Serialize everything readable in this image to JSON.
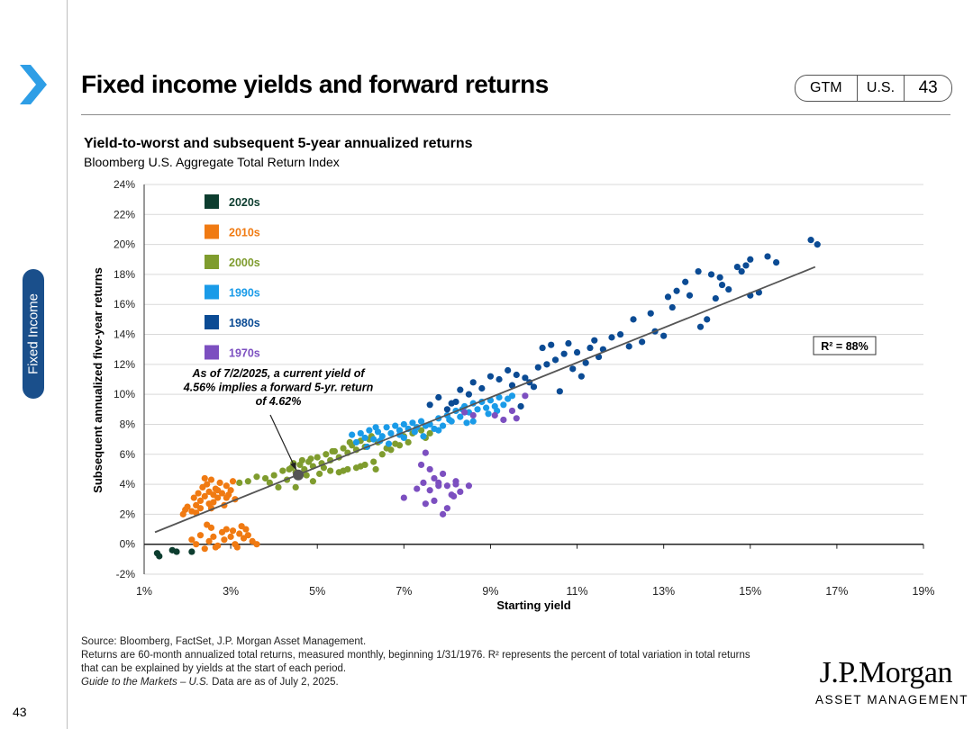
{
  "header": {
    "title": "Fixed income yields and forward returns",
    "badge": {
      "label1": "GTM",
      "label2": "U.S.",
      "page": "43"
    },
    "side_tab": "Fixed Income"
  },
  "colors": {
    "2020s": "#0d3d2f",
    "2010s": "#f07a12",
    "2000s": "#7f9c2e",
    "1990s": "#1a9be8",
    "1980s": "#0b4b94",
    "1970s": "#7c4fc0",
    "accent": "#2e9ee6",
    "tab": "#1a4f8b"
  },
  "chart_data": {
    "type": "scatter",
    "title": "Yield-to-worst and subsequent 5-year annualized returns",
    "subtitle": "Bloomberg U.S. Aggregate Total Return Index",
    "xlabel": "Starting yield",
    "ylabel": "Subsequent annualized five-year returns",
    "xlim": [
      1,
      19
    ],
    "ylim": [
      -2,
      24
    ],
    "xticks": [
      "1%",
      "3%",
      "5%",
      "7%",
      "9%",
      "11%",
      "13%",
      "15%",
      "17%",
      "19%"
    ],
    "yticks": [
      "-2%",
      "0%",
      "2%",
      "4%",
      "6%",
      "8%",
      "10%",
      "12%",
      "14%",
      "16%",
      "18%",
      "20%",
      "22%",
      "24%"
    ],
    "legend": [
      "2020s",
      "2010s",
      "2000s",
      "1990s",
      "1980s",
      "1970s"
    ],
    "legend_position": "top-left",
    "regression": {
      "x": [
        1.25,
        16.5
      ],
      "y": [
        0.8,
        18.5
      ]
    },
    "r2_label": "R² = 88%",
    "annotation": "As of 7/2/2025, a current yield of 4.56% implies a forward 5-yr. return of 4.62%",
    "current_point": {
      "x": 4.56,
      "y": 4.62
    },
    "series": [
      {
        "name": "2020s",
        "points": [
          [
            1.3,
            -0.6
          ],
          [
            1.35,
            -0.8
          ],
          [
            1.65,
            -0.4
          ],
          [
            1.75,
            -0.5
          ],
          [
            2.1,
            -0.5
          ]
        ]
      },
      {
        "name": "2010s",
        "points": [
          [
            1.9,
            2.0
          ],
          [
            1.95,
            2.3
          ],
          [
            2.0,
            2.5
          ],
          [
            2.1,
            2.2
          ],
          [
            2.15,
            3.1
          ],
          [
            2.2,
            2.6
          ],
          [
            2.25,
            3.4
          ],
          [
            2.3,
            2.9
          ],
          [
            2.35,
            3.8
          ],
          [
            2.4,
            3.2
          ],
          [
            2.45,
            4.0
          ],
          [
            2.5,
            3.5
          ],
          [
            2.55,
            4.3
          ],
          [
            2.6,
            2.8
          ],
          [
            2.65,
            3.7
          ],
          [
            2.7,
            3.1
          ],
          [
            2.75,
            4.1
          ],
          [
            2.8,
            3.4
          ],
          [
            2.85,
            2.6
          ],
          [
            2.9,
            3.9
          ],
          [
            2.95,
            3.3
          ],
          [
            3.0,
            3.6
          ],
          [
            3.05,
            4.2
          ],
          [
            3.1,
            3.0
          ],
          [
            2.2,
            2.1
          ],
          [
            2.3,
            2.4
          ],
          [
            2.5,
            2.7
          ],
          [
            2.6,
            3.3
          ],
          [
            2.7,
            3.6
          ],
          [
            2.4,
            4.4
          ],
          [
            2.55,
            2.4
          ],
          [
            2.9,
            3.1
          ],
          [
            2.1,
            0.3
          ],
          [
            2.2,
            0.0
          ],
          [
            2.3,
            0.6
          ],
          [
            2.4,
            -0.3
          ],
          [
            2.5,
            0.2
          ],
          [
            2.55,
            1.1
          ],
          [
            2.6,
            0.5
          ],
          [
            2.7,
            -0.1
          ],
          [
            2.8,
            0.8
          ],
          [
            2.85,
            0.3
          ],
          [
            2.9,
            1.0
          ],
          [
            3.0,
            0.5
          ],
          [
            3.05,
            0.9
          ],
          [
            3.1,
            0.0
          ],
          [
            3.2,
            0.7
          ],
          [
            3.25,
            1.2
          ],
          [
            3.3,
            0.4
          ],
          [
            3.35,
            1.0
          ],
          [
            3.4,
            0.6
          ],
          [
            3.5,
            0.2
          ],
          [
            3.6,
            0.0
          ],
          [
            2.45,
            1.3
          ],
          [
            2.65,
            -0.2
          ],
          [
            3.15,
            -0.2
          ]
        ]
      },
      {
        "name": "2000s",
        "points": [
          [
            3.2,
            4.1
          ],
          [
            3.4,
            4.2
          ],
          [
            3.6,
            4.5
          ],
          [
            3.8,
            4.4
          ],
          [
            4.0,
            4.6
          ],
          [
            4.2,
            4.9
          ],
          [
            4.3,
            4.3
          ],
          [
            4.4,
            5.1
          ],
          [
            4.5,
            4.8
          ],
          [
            4.6,
            5.3
          ],
          [
            4.7,
            5.0
          ],
          [
            4.8,
            5.5
          ],
          [
            4.9,
            5.2
          ],
          [
            5.0,
            5.8
          ],
          [
            5.1,
            5.4
          ],
          [
            5.2,
            6.0
          ],
          [
            5.3,
            5.6
          ],
          [
            5.4,
            6.2
          ],
          [
            5.5,
            5.8
          ],
          [
            5.6,
            6.4
          ],
          [
            5.7,
            6.1
          ],
          [
            5.8,
            6.6
          ],
          [
            5.9,
            6.3
          ],
          [
            6.0,
            6.9
          ],
          [
            6.1,
            6.5
          ],
          [
            6.2,
            7.0
          ],
          [
            4.45,
            5.4
          ],
          [
            4.85,
            5.7
          ],
          [
            5.15,
            5.1
          ],
          [
            4.75,
            4.6
          ],
          [
            4.1,
            3.8
          ],
          [
            3.9,
            4.1
          ],
          [
            4.9,
            4.2
          ],
          [
            5.05,
            4.7
          ],
          [
            5.3,
            4.9
          ],
          [
            5.5,
            4.8
          ],
          [
            5.7,
            5.0
          ],
          [
            5.9,
            5.1
          ],
          [
            6.1,
            5.3
          ],
          [
            6.3,
            5.5
          ],
          [
            6.5,
            6.0
          ],
          [
            6.7,
            6.3
          ],
          [
            6.9,
            6.6
          ],
          [
            7.0,
            7.2
          ],
          [
            7.2,
            7.4
          ],
          [
            7.4,
            7.6
          ],
          [
            7.5,
            7.1
          ],
          [
            7.1,
            6.8
          ],
          [
            6.8,
            6.7
          ],
          [
            6.6,
            6.4
          ],
          [
            6.35,
            5.0
          ],
          [
            6.0,
            5.2
          ],
          [
            5.6,
            4.9
          ],
          [
            4.5,
            3.8
          ],
          [
            7.3,
            7.8
          ],
          [
            6.4,
            6.8
          ],
          [
            5.35,
            6.2
          ],
          [
            4.65,
            5.6
          ],
          [
            4.35,
            5.0
          ],
          [
            5.75,
            6.8
          ],
          [
            6.25,
            7.2
          ],
          [
            7.6,
            7.4
          ]
        ]
      },
      {
        "name": "1990s",
        "points": [
          [
            5.8,
            7.3
          ],
          [
            5.9,
            6.8
          ],
          [
            6.0,
            7.4
          ],
          [
            6.1,
            7.1
          ],
          [
            6.2,
            7.6
          ],
          [
            6.3,
            7.0
          ],
          [
            6.4,
            7.5
          ],
          [
            6.5,
            7.2
          ],
          [
            6.6,
            7.8
          ],
          [
            6.7,
            7.4
          ],
          [
            6.8,
            7.9
          ],
          [
            6.9,
            7.6
          ],
          [
            7.0,
            8.0
          ],
          [
            7.1,
            7.7
          ],
          [
            7.2,
            8.1
          ],
          [
            7.3,
            7.8
          ],
          [
            7.4,
            8.2
          ],
          [
            7.5,
            7.9
          ],
          [
            7.6,
            8.0
          ],
          [
            7.7,
            7.7
          ],
          [
            7.8,
            8.4
          ],
          [
            7.9,
            7.9
          ],
          [
            8.0,
            8.6
          ],
          [
            8.1,
            8.2
          ],
          [
            8.2,
            8.9
          ],
          [
            8.3,
            8.5
          ],
          [
            8.4,
            9.2
          ],
          [
            8.5,
            8.8
          ],
          [
            8.6,
            9.4
          ],
          [
            8.7,
            9.0
          ],
          [
            8.8,
            9.5
          ],
          [
            8.9,
            9.1
          ],
          [
            9.0,
            9.6
          ],
          [
            9.1,
            9.2
          ],
          [
            9.2,
            9.8
          ],
          [
            9.3,
            9.3
          ],
          [
            9.4,
            9.7
          ],
          [
            6.15,
            6.5
          ],
          [
            6.45,
            6.9
          ],
          [
            7.0,
            7.1
          ],
          [
            7.45,
            7.2
          ],
          [
            7.8,
            7.6
          ],
          [
            8.05,
            8.3
          ],
          [
            8.35,
            9.0
          ],
          [
            8.6,
            8.2
          ],
          [
            8.95,
            8.7
          ],
          [
            9.5,
            9.9
          ],
          [
            6.35,
            7.8
          ],
          [
            6.65,
            6.7
          ],
          [
            6.9,
            7.3
          ],
          [
            7.25,
            7.5
          ],
          [
            8.45,
            8.1
          ],
          [
            9.15,
            8.9
          ]
        ]
      },
      {
        "name": "1980s",
        "points": [
          [
            7.6,
            9.3
          ],
          [
            7.8,
            9.8
          ],
          [
            8.0,
            9.0
          ],
          [
            8.2,
            9.5
          ],
          [
            8.3,
            10.3
          ],
          [
            8.5,
            10.0
          ],
          [
            8.6,
            10.8
          ],
          [
            8.8,
            10.4
          ],
          [
            9.0,
            11.2
          ],
          [
            9.2,
            11.0
          ],
          [
            9.4,
            11.6
          ],
          [
            9.5,
            10.6
          ],
          [
            9.6,
            11.3
          ],
          [
            9.8,
            11.1
          ],
          [
            10.0,
            10.5
          ],
          [
            10.1,
            11.8
          ],
          [
            10.2,
            13.1
          ],
          [
            10.3,
            12.0
          ],
          [
            10.4,
            13.3
          ],
          [
            10.5,
            12.3
          ],
          [
            10.7,
            12.7
          ],
          [
            10.8,
            13.4
          ],
          [
            11.0,
            12.8
          ],
          [
            11.2,
            12.1
          ],
          [
            11.3,
            13.1
          ],
          [
            11.4,
            13.6
          ],
          [
            11.5,
            12.5
          ],
          [
            11.6,
            13.0
          ],
          [
            11.8,
            13.8
          ],
          [
            12.0,
            14.0
          ],
          [
            12.2,
            13.2
          ],
          [
            12.3,
            15.0
          ],
          [
            12.5,
            13.5
          ],
          [
            12.8,
            14.2
          ],
          [
            13.0,
            13.9
          ],
          [
            13.1,
            16.5
          ],
          [
            13.2,
            15.8
          ],
          [
            13.3,
            16.9
          ],
          [
            13.5,
            17.5
          ],
          [
            13.6,
            16.6
          ],
          [
            13.8,
            18.2
          ],
          [
            14.0,
            15.0
          ],
          [
            14.1,
            18.0
          ],
          [
            14.2,
            16.4
          ],
          [
            14.3,
            17.8
          ],
          [
            14.5,
            17.0
          ],
          [
            14.7,
            18.5
          ],
          [
            14.8,
            18.2
          ],
          [
            15.0,
            19.0
          ],
          [
            15.2,
            16.8
          ],
          [
            15.4,
            19.2
          ],
          [
            15.6,
            18.8
          ],
          [
            16.4,
            20.3
          ],
          [
            16.55,
            20.0
          ],
          [
            9.7,
            9.2
          ],
          [
            10.6,
            10.2
          ],
          [
            11.1,
            11.2
          ],
          [
            12.7,
            15.4
          ],
          [
            13.85,
            14.5
          ],
          [
            14.9,
            18.6
          ],
          [
            14.35,
            17.3
          ],
          [
            15.0,
            16.6
          ],
          [
            10.9,
            11.7
          ],
          [
            9.9,
            10.8
          ],
          [
            8.1,
            9.4
          ]
        ]
      },
      {
        "name": "1970s",
        "points": [
          [
            7.4,
            5.3
          ],
          [
            7.5,
            6.1
          ],
          [
            7.6,
            5.0
          ],
          [
            7.7,
            4.4
          ],
          [
            7.8,
            4.1
          ],
          [
            7.9,
            4.7
          ],
          [
            8.0,
            3.9
          ],
          [
            8.1,
            3.3
          ],
          [
            8.2,
            4.2
          ],
          [
            8.3,
            3.5
          ],
          [
            7.7,
            2.9
          ],
          [
            7.9,
            2.0
          ],
          [
            8.0,
            2.4
          ],
          [
            8.2,
            4.0
          ],
          [
            7.0,
            3.1
          ],
          [
            7.3,
            3.7
          ],
          [
            7.5,
            2.7
          ],
          [
            7.6,
            3.6
          ],
          [
            7.8,
            3.9
          ],
          [
            8.15,
            3.2
          ],
          [
            7.45,
            4.1
          ],
          [
            8.5,
            3.9
          ],
          [
            9.1,
            8.6
          ],
          [
            9.3,
            8.3
          ],
          [
            9.5,
            8.9
          ],
          [
            9.8,
            9.9
          ],
          [
            9.6,
            8.4
          ],
          [
            8.6,
            8.6
          ],
          [
            8.4,
            8.8
          ]
        ]
      }
    ]
  },
  "footer": {
    "line1": "Source: Bloomberg, FactSet, J.P. Morgan Asset Management.",
    "line2": "Returns are 60-month annualized total returns, measured monthly, beginning 1/31/1976. R² represents the percent of total variation in total returns",
    "line3": "that can be explained by yields at the start of each period.",
    "line4_italic": "Guide to the Markets – U.S.",
    "line4_rest": " Data are as of July 2, 2025."
  },
  "logo": {
    "main": "J.P.Morgan",
    "sub": "ASSET MANAGEMENT"
  },
  "page_number": "43"
}
